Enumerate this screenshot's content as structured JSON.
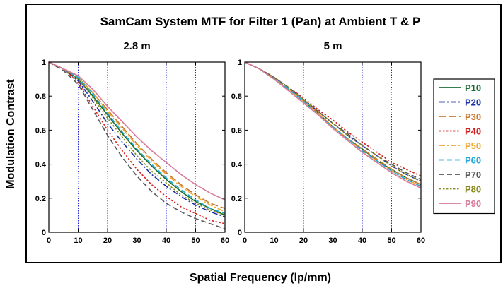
{
  "figure": {
    "title": "SamCam System MTF for Filter 1 (Pan) at Ambient T & P",
    "xlabel": "Spatial Frequency (lp/mm)",
    "ylabel": "Modulation Contrast"
  },
  "chart_data": [
    {
      "type": "line",
      "title": "2.8 m",
      "xlabel": "Spatial Frequency (lp/mm)",
      "ylabel": "Modulation Contrast",
      "xlim": [
        0,
        60
      ],
      "ylim": [
        0,
        1
      ],
      "xticks": [
        0,
        10,
        20,
        30,
        40,
        50,
        60
      ],
      "yticks": [
        0,
        0.2,
        0.4,
        0.6,
        0.8,
        1
      ],
      "grid": "vertical dotted at x = 10, 20, 30, 40, 50",
      "x": [
        0,
        5,
        10,
        15,
        20,
        25,
        30,
        35,
        40,
        45,
        50,
        55,
        60
      ],
      "series": [
        {
          "name": "P10",
          "color": "#1a6b30",
          "dash": "solid",
          "values": [
            1.0,
            0.96,
            0.9,
            0.8,
            0.69,
            0.58,
            0.48,
            0.39,
            0.31,
            0.24,
            0.18,
            0.14,
            0.1
          ]
        },
        {
          "name": "P20",
          "color": "#1a2fa8",
          "dash": "dashdot",
          "values": [
            1.0,
            0.96,
            0.89,
            0.77,
            0.64,
            0.53,
            0.43,
            0.34,
            0.27,
            0.21,
            0.16,
            0.12,
            0.09
          ]
        },
        {
          "name": "P30",
          "color": "#c87830",
          "dash": "longdash",
          "values": [
            1.0,
            0.96,
            0.91,
            0.82,
            0.72,
            0.62,
            0.52,
            0.43,
            0.35,
            0.28,
            0.22,
            0.17,
            0.14
          ]
        },
        {
          "name": "P40",
          "color": "#d42020",
          "dash": "dotted",
          "values": [
            1.0,
            0.96,
            0.88,
            0.74,
            0.6,
            0.48,
            0.37,
            0.28,
            0.21,
            0.15,
            0.11,
            0.07,
            0.05
          ]
        },
        {
          "name": "P50",
          "color": "#f0a830",
          "dash": "dashdot",
          "values": [
            1.0,
            0.96,
            0.91,
            0.82,
            0.71,
            0.61,
            0.51,
            0.42,
            0.34,
            0.27,
            0.21,
            0.16,
            0.12
          ]
        },
        {
          "name": "P60",
          "color": "#20a8d8",
          "dash": "dash",
          "values": [
            1.0,
            0.96,
            0.91,
            0.81,
            0.7,
            0.59,
            0.49,
            0.4,
            0.32,
            0.25,
            0.19,
            0.14,
            0.11
          ]
        },
        {
          "name": "P70",
          "color": "#555555",
          "dash": "dash",
          "values": [
            1.0,
            0.95,
            0.87,
            0.72,
            0.57,
            0.44,
            0.33,
            0.24,
            0.17,
            0.12,
            0.08,
            0.05,
            0.02
          ]
        },
        {
          "name": "P80",
          "color": "#8a8a20",
          "dash": "dotted",
          "values": [
            1.0,
            0.96,
            0.9,
            0.79,
            0.67,
            0.56,
            0.45,
            0.36,
            0.29,
            0.22,
            0.17,
            0.13,
            0.1
          ]
        },
        {
          "name": "P90",
          "color": "#d87a9a",
          "dash": "solid",
          "values": [
            1.0,
            0.96,
            0.92,
            0.84,
            0.74,
            0.65,
            0.56,
            0.48,
            0.41,
            0.34,
            0.28,
            0.23,
            0.19
          ]
        }
      ]
    },
    {
      "type": "line",
      "title": "5 m",
      "xlabel": "Spatial Frequency (lp/mm)",
      "ylabel": "Modulation Contrast",
      "xlim": [
        0,
        60
      ],
      "ylim": [
        0,
        1
      ],
      "xticks": [
        0,
        10,
        20,
        30,
        40,
        50,
        60
      ],
      "yticks": [
        0,
        0.2,
        0.4,
        0.6,
        0.8,
        1
      ],
      "grid": "vertical dotted at x = 10, 20, 30, 40, 50",
      "x": [
        0,
        5,
        10,
        15,
        20,
        25,
        30,
        35,
        40,
        45,
        50,
        55,
        60
      ],
      "series": [
        {
          "name": "P10",
          "color": "#1a6b30",
          "dash": "solid",
          "values": [
            1.0,
            0.96,
            0.9,
            0.84,
            0.77,
            0.7,
            0.62,
            0.55,
            0.49,
            0.42,
            0.37,
            0.32,
            0.28
          ]
        },
        {
          "name": "P20",
          "color": "#1a2fa8",
          "dash": "dashdot",
          "values": [
            1.0,
            0.96,
            0.91,
            0.85,
            0.78,
            0.71,
            0.64,
            0.57,
            0.51,
            0.45,
            0.39,
            0.34,
            0.3
          ]
        },
        {
          "name": "P30",
          "color": "#c87830",
          "dash": "longdash",
          "values": [
            1.0,
            0.96,
            0.9,
            0.84,
            0.77,
            0.7,
            0.62,
            0.55,
            0.49,
            0.43,
            0.37,
            0.32,
            0.28
          ]
        },
        {
          "name": "P40",
          "color": "#d42020",
          "dash": "dotted",
          "values": [
            1.0,
            0.96,
            0.91,
            0.85,
            0.79,
            0.72,
            0.66,
            0.59,
            0.53,
            0.47,
            0.41,
            0.37,
            0.33
          ]
        },
        {
          "name": "P50",
          "color": "#f0a830",
          "dash": "dashdot",
          "values": [
            1.0,
            0.96,
            0.9,
            0.84,
            0.77,
            0.7,
            0.62,
            0.55,
            0.48,
            0.42,
            0.36,
            0.31,
            0.27
          ]
        },
        {
          "name": "P60",
          "color": "#20a8d8",
          "dash": "dash",
          "values": [
            1.0,
            0.96,
            0.9,
            0.84,
            0.77,
            0.69,
            0.62,
            0.55,
            0.48,
            0.42,
            0.36,
            0.31,
            0.27
          ]
        },
        {
          "name": "P70",
          "color": "#555555",
          "dash": "dash",
          "values": [
            1.0,
            0.96,
            0.91,
            0.85,
            0.78,
            0.71,
            0.64,
            0.58,
            0.51,
            0.45,
            0.4,
            0.35,
            0.31
          ]
        },
        {
          "name": "P80",
          "color": "#8a8a20",
          "dash": "dotted",
          "values": [
            1.0,
            0.96,
            0.91,
            0.85,
            0.78,
            0.71,
            0.64,
            0.57,
            0.51,
            0.45,
            0.39,
            0.34,
            0.3
          ]
        },
        {
          "name": "P90",
          "color": "#d87a9a",
          "dash": "solid",
          "values": [
            1.0,
            0.96,
            0.9,
            0.83,
            0.76,
            0.69,
            0.61,
            0.54,
            0.47,
            0.41,
            0.35,
            0.3,
            0.26
          ]
        }
      ]
    }
  ],
  "legend": {
    "placement": "right",
    "items": [
      "P10",
      "P20",
      "P30",
      "P40",
      "P50",
      "P60",
      "P70",
      "P80",
      "P90"
    ]
  }
}
